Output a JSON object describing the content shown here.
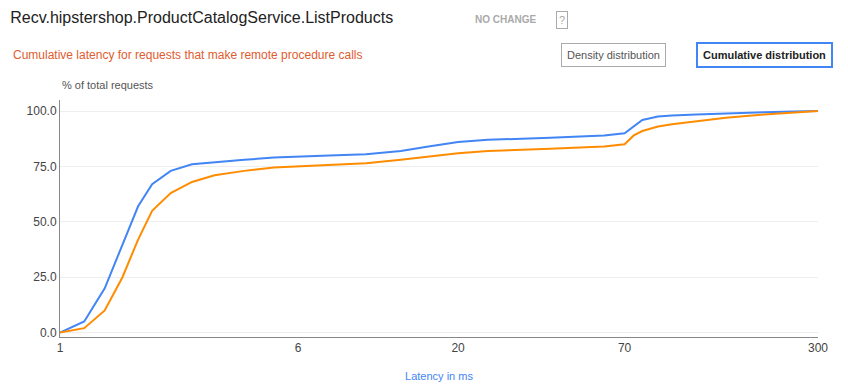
{
  "chart_data": {
    "type": "line",
    "title": "Recv.hipstershop.ProductCatalogService.ListProducts",
    "subtitle": "Cumulative latency for requests that make remote procedure calls",
    "xlabel": "Latency in ms",
    "ylabel": "% of total requests",
    "annotations": [
      "NO CHANGE",
      "Density distribution",
      "Cumulative distribution",
      "?"
    ],
    "x": [
      1,
      1.2,
      1.4,
      1.6,
      1.8,
      2.0,
      2.3,
      2.7,
      3.2,
      4.0,
      5.0,
      6.0,
      8.0,
      10.0,
      13.0,
      16.0,
      20.0,
      25.0,
      30.0,
      40.0,
      50.0,
      60.0,
      70.0,
      75.0,
      80.0,
      90.0,
      100.0,
      120.0,
      150.0,
      200.0,
      250.0,
      300.0
    ],
    "series": [
      {
        "color": "#4285F4",
        "values": [
          0,
          5,
          20,
          40,
          57,
          67,
          73,
          76,
          77,
          78,
          79,
          79.5,
          80,
          80.5,
          82,
          84,
          86,
          87,
          87.5,
          88,
          88.5,
          89,
          90,
          93,
          96,
          97.5,
          98,
          98.5,
          99,
          99.5,
          99.8,
          100
        ]
      },
      {
        "color": "#FF8C00",
        "values": [
          0,
          2,
          10,
          25,
          42,
          55,
          63,
          68,
          71,
          73,
          74.5,
          75,
          76,
          76.5,
          78,
          79.5,
          81,
          82,
          82.5,
          83,
          83.5,
          84,
          85,
          89,
          91,
          93,
          94,
          95.5,
          97,
          98.5,
          99.5,
          100
        ]
      }
    ],
    "log": "x",
    "xlim": [
      1,
      300
    ],
    "xticks": [
      1,
      6,
      20,
      70,
      300
    ],
    "ylim": [
      -2,
      105
    ],
    "yticks": [
      {
        "value": 0,
        "label": "0.0"
      },
      {
        "value": 25,
        "label": "25.0"
      },
      {
        "value": 50,
        "label": "50.0"
      },
      {
        "value": 75,
        "label": "75.0"
      },
      {
        "value": 100,
        "label": "100.0"
      }
    ],
    "grid": "y"
  }
}
